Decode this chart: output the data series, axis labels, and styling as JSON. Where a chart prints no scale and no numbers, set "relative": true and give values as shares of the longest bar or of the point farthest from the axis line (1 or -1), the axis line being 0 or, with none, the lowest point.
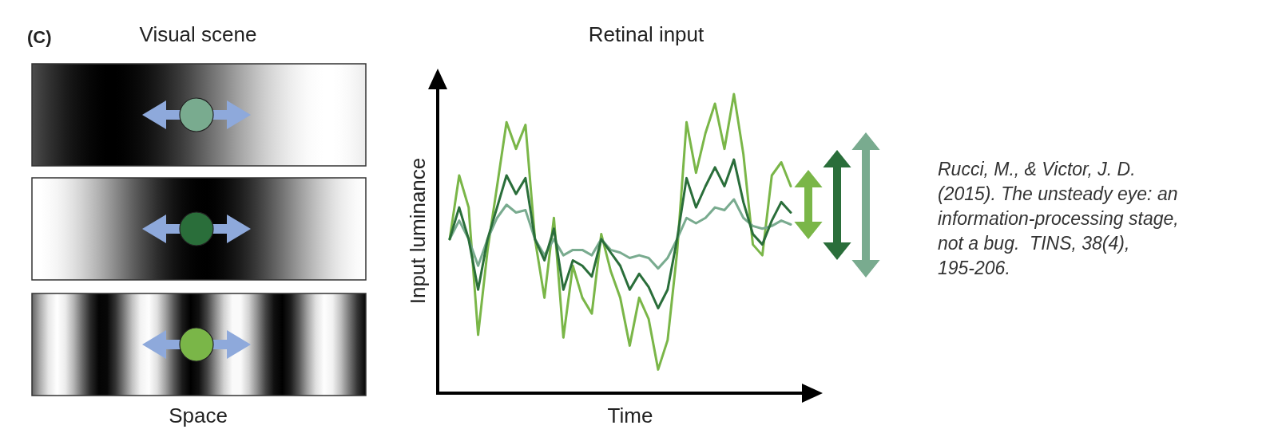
{
  "chart_data": {
    "type": "line",
    "title": "Retinal input",
    "xlabel": "Time",
    "ylabel": "Input luminance",
    "relative": true,
    "line_style": "solid",
    "categories": [
      null,
      null,
      null,
      null,
      null,
      null,
      null,
      null,
      null,
      null,
      null,
      null,
      null,
      null,
      null,
      null,
      null,
      null,
      null,
      null,
      null,
      null,
      null,
      null,
      null,
      null,
      null,
      null,
      null,
      null,
      null,
      null,
      null,
      null,
      null,
      null,
      null
    ],
    "series": [
      {
        "color": "#7ab648",
        "values": [
          0.515,
          0.728,
          0.621,
          0.195,
          0.479,
          0.692,
          0.906,
          0.817,
          0.897,
          0.515,
          0.319,
          0.586,
          0.186,
          0.426,
          0.319,
          0.266,
          0.532,
          0.408,
          0.319,
          0.159,
          0.319,
          0.248,
          0.079,
          0.177,
          0.47,
          0.906,
          0.737,
          0.87,
          0.968,
          0.817,
          1,
          0.799,
          0.497,
          0.461,
          0.728,
          0.772,
          0.692
        ]
      },
      {
        "color": "#79ab8f",
        "values": [
          0.515,
          0.577,
          0.515,
          0.426,
          0.515,
          0.586,
          0.63,
          0.604,
          0.612,
          0.515,
          0.461,
          0.515,
          0.461,
          0.479,
          0.479,
          0.461,
          0.515,
          0.479,
          0.47,
          0.452,
          0.461,
          0.452,
          0.417,
          0.452,
          0.515,
          0.586,
          0.568,
          0.586,
          0.621,
          0.612,
          0.648,
          0.586,
          0.559,
          0.55,
          0.559,
          0.577,
          0.564
        ]
      },
      {
        "color": "#2a6e3a",
        "values": [
          0.515,
          0.621,
          0.515,
          0.346,
          0.515,
          0.621,
          0.728,
          0.666,
          0.719,
          0.515,
          0.444,
          0.55,
          0.346,
          0.444,
          0.426,
          0.39,
          0.515,
          0.47,
          0.426,
          0.346,
          0.399,
          0.355,
          0.284,
          0.346,
          0.515,
          0.719,
          0.621,
          0.692,
          0.755,
          0.692,
          0.781,
          0.639,
          0.532,
          0.497,
          0.577,
          0.639,
          0.604
        ]
      }
    ],
    "annotations": [
      "(C)",
      "Visual scene",
      "Space",
      "Rucci, M., & Victor, J. D. (2015). The unsteady eye: an information-processing stage, not a bug.  TINS, 38(4), 195-206."
    ]
  }
}
